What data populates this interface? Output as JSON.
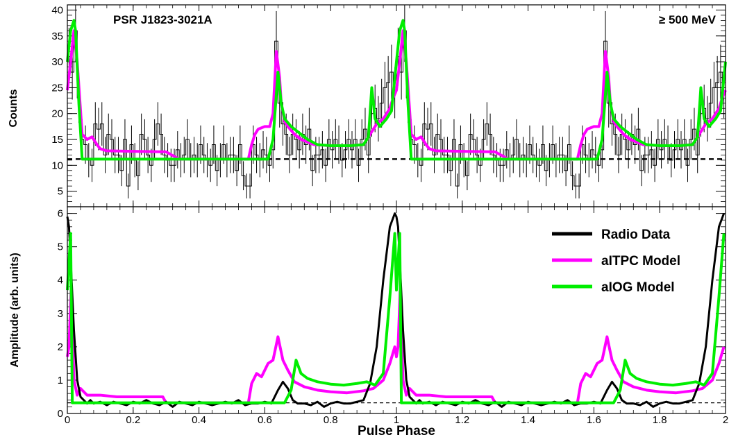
{
  "chart_data": {
    "type": "line",
    "xlabel": "Pulse Phase",
    "xlim": [
      0,
      2
    ],
    "x_ticks": [
      "0",
      "0.2",
      "0.4",
      "0.6",
      "0.8",
      "1",
      "1.2",
      "1.4",
      "1.6",
      "1.8",
      "2"
    ],
    "colors": {
      "data": "#000000",
      "altpc": "#ff00ff",
      "alog": "#00ee00",
      "baseline": "#000000"
    },
    "top_panel": {
      "title": "PSR J1823-3021A",
      "energy_label": "≥ 500 MeV",
      "ylabel": "Counts",
      "ylim": [
        2,
        41
      ],
      "y_ticks": [
        "5",
        "10",
        "15",
        "20",
        "25",
        "30",
        "35",
        "40"
      ],
      "baseline": 11.2,
      "histogram_one_cycle": [
        {
          "x": 0.005,
          "y": 31,
          "err": 5.6
        },
        {
          "x": 0.015,
          "y": 28,
          "err": 5.3
        },
        {
          "x": 0.025,
          "y": 36,
          "err": 6.0
        },
        {
          "x": 0.035,
          "y": 23,
          "err": 4.8
        },
        {
          "x": 0.045,
          "y": 15,
          "err": 3.9
        },
        {
          "x": 0.055,
          "y": 14,
          "err": 3.7
        },
        {
          "x": 0.065,
          "y": 11,
          "err": 3.3
        },
        {
          "x": 0.075,
          "y": 10,
          "err": 3.2
        },
        {
          "x": 0.085,
          "y": 18,
          "err": 4.2
        },
        {
          "x": 0.095,
          "y": 17,
          "err": 4.1
        },
        {
          "x": 0.105,
          "y": 18,
          "err": 4.2
        },
        {
          "x": 0.115,
          "y": 12,
          "err": 3.5
        },
        {
          "x": 0.125,
          "y": 16,
          "err": 4.0
        },
        {
          "x": 0.135,
          "y": 15,
          "err": 3.9
        },
        {
          "x": 0.145,
          "y": 12,
          "err": 3.5
        },
        {
          "x": 0.155,
          "y": 12,
          "err": 3.5
        },
        {
          "x": 0.165,
          "y": 9,
          "err": 3.0
        },
        {
          "x": 0.175,
          "y": 15,
          "err": 3.9
        },
        {
          "x": 0.185,
          "y": 6,
          "err": 2.4
        },
        {
          "x": 0.195,
          "y": 14,
          "err": 3.7
        },
        {
          "x": 0.205,
          "y": 11,
          "err": 3.3
        },
        {
          "x": 0.215,
          "y": 8,
          "err": 2.8
        },
        {
          "x": 0.225,
          "y": 16,
          "err": 4.0
        },
        {
          "x": 0.235,
          "y": 15,
          "err": 3.9
        },
        {
          "x": 0.245,
          "y": 12,
          "err": 3.5
        },
        {
          "x": 0.255,
          "y": 10,
          "err": 3.2
        },
        {
          "x": 0.265,
          "y": 15,
          "err": 3.9
        },
        {
          "x": 0.275,
          "y": 18,
          "err": 4.2
        },
        {
          "x": 0.285,
          "y": 16,
          "err": 4.0
        },
        {
          "x": 0.295,
          "y": 12,
          "err": 3.5
        },
        {
          "x": 0.305,
          "y": 11,
          "err": 3.3
        },
        {
          "x": 0.315,
          "y": 10,
          "err": 3.2
        },
        {
          "x": 0.325,
          "y": 10,
          "err": 3.2
        },
        {
          "x": 0.335,
          "y": 13,
          "err": 3.6
        },
        {
          "x": 0.345,
          "y": 11,
          "err": 3.3
        },
        {
          "x": 0.355,
          "y": 12,
          "err": 3.5
        },
        {
          "x": 0.365,
          "y": 15,
          "err": 3.9
        },
        {
          "x": 0.375,
          "y": 11,
          "err": 3.3
        },
        {
          "x": 0.385,
          "y": 12,
          "err": 3.5
        },
        {
          "x": 0.395,
          "y": 11,
          "err": 3.3
        },
        {
          "x": 0.405,
          "y": 14,
          "err": 3.7
        },
        {
          "x": 0.415,
          "y": 12,
          "err": 3.5
        },
        {
          "x": 0.425,
          "y": 11,
          "err": 3.3
        },
        {
          "x": 0.435,
          "y": 10,
          "err": 3.2
        },
        {
          "x": 0.445,
          "y": 14,
          "err": 3.7
        },
        {
          "x": 0.455,
          "y": 9,
          "err": 3.0
        },
        {
          "x": 0.465,
          "y": 11,
          "err": 3.3
        },
        {
          "x": 0.475,
          "y": 14,
          "err": 3.7
        },
        {
          "x": 0.485,
          "y": 11,
          "err": 3.3
        },
        {
          "x": 0.495,
          "y": 12,
          "err": 3.5
        },
        {
          "x": 0.505,
          "y": 12,
          "err": 3.5
        },
        {
          "x": 0.515,
          "y": 9,
          "err": 3.0
        },
        {
          "x": 0.525,
          "y": 14,
          "err": 3.7
        },
        {
          "x": 0.535,
          "y": 8,
          "err": 2.8
        },
        {
          "x": 0.545,
          "y": 6,
          "err": 2.4
        },
        {
          "x": 0.555,
          "y": 6,
          "err": 2.4
        },
        {
          "x": 0.565,
          "y": 14,
          "err": 3.7
        },
        {
          "x": 0.575,
          "y": 12,
          "err": 3.5
        },
        {
          "x": 0.585,
          "y": 11,
          "err": 3.3
        },
        {
          "x": 0.595,
          "y": 13,
          "err": 3.6
        },
        {
          "x": 0.605,
          "y": 12,
          "err": 3.5
        },
        {
          "x": 0.615,
          "y": 10,
          "err": 3.2
        },
        {
          "x": 0.625,
          "y": 13,
          "err": 3.6
        },
        {
          "x": 0.635,
          "y": 34,
          "err": 5.8
        },
        {
          "x": 0.645,
          "y": 22,
          "err": 4.7
        },
        {
          "x": 0.655,
          "y": 18,
          "err": 4.2
        },
        {
          "x": 0.665,
          "y": 16,
          "err": 4.0
        },
        {
          "x": 0.675,
          "y": 12,
          "err": 3.5
        },
        {
          "x": 0.685,
          "y": 16,
          "err": 4.0
        },
        {
          "x": 0.695,
          "y": 15,
          "err": 3.9
        },
        {
          "x": 0.705,
          "y": 13,
          "err": 3.6
        },
        {
          "x": 0.715,
          "y": 16,
          "err": 4.0
        },
        {
          "x": 0.725,
          "y": 14,
          "err": 3.7
        },
        {
          "x": 0.735,
          "y": 17,
          "err": 4.1
        },
        {
          "x": 0.745,
          "y": 9,
          "err": 3.0
        },
        {
          "x": 0.755,
          "y": 12,
          "err": 3.5
        },
        {
          "x": 0.765,
          "y": 12,
          "err": 3.5
        },
        {
          "x": 0.775,
          "y": 13,
          "err": 3.6
        },
        {
          "x": 0.785,
          "y": 10,
          "err": 3.2
        },
        {
          "x": 0.795,
          "y": 15,
          "err": 3.9
        },
        {
          "x": 0.805,
          "y": 13,
          "err": 3.6
        },
        {
          "x": 0.815,
          "y": 15,
          "err": 3.9
        },
        {
          "x": 0.825,
          "y": 14,
          "err": 3.7
        },
        {
          "x": 0.835,
          "y": 11,
          "err": 3.3
        },
        {
          "x": 0.845,
          "y": 13,
          "err": 3.6
        },
        {
          "x": 0.855,
          "y": 15,
          "err": 3.9
        },
        {
          "x": 0.865,
          "y": 13,
          "err": 3.6
        },
        {
          "x": 0.875,
          "y": 15,
          "err": 3.9
        },
        {
          "x": 0.885,
          "y": 10,
          "err": 3.2
        },
        {
          "x": 0.895,
          "y": 15,
          "err": 3.9
        },
        {
          "x": 0.905,
          "y": 17,
          "err": 4.1
        },
        {
          "x": 0.915,
          "y": 12,
          "err": 3.5
        },
        {
          "x": 0.925,
          "y": 20,
          "err": 4.5
        },
        {
          "x": 0.935,
          "y": 21,
          "err": 4.6
        },
        {
          "x": 0.945,
          "y": 19,
          "err": 4.4
        },
        {
          "x": 0.955,
          "y": 22,
          "err": 4.7
        },
        {
          "x": 0.965,
          "y": 25,
          "err": 5.0
        },
        {
          "x": 0.975,
          "y": 26,
          "err": 5.1
        },
        {
          "x": 0.985,
          "y": 28,
          "err": 5.3
        },
        {
          "x": 0.995,
          "y": 24,
          "err": 4.9
        }
      ],
      "models_one_cycle": [
        {
          "name": "altpc",
          "x": [
            0,
            0.01,
            0.02,
            0.03,
            0.045,
            0.06,
            0.075,
            0.09,
            0.1,
            0.12,
            0.2,
            0.3,
            0.34,
            0.55,
            0.56,
            0.57,
            0.58,
            0.6,
            0.615,
            0.625,
            0.635,
            0.645,
            0.65,
            0.66,
            0.67,
            0.69,
            0.71,
            0.73,
            0.75,
            0.8,
            0.85,
            0.9,
            0.92,
            0.94,
            0.96,
            0.98,
            0.99,
            1.0
          ],
          "y": [
            24.5,
            30,
            36,
            30,
            16,
            15,
            15.5,
            14,
            13.2,
            12.8,
            12.7,
            12.6,
            11.2,
            11.2,
            14,
            16,
            17,
            17.5,
            17.5,
            20,
            32,
            27,
            22,
            18.5,
            17.5,
            16,
            15,
            14.5,
            14,
            13.8,
            13.8,
            14,
            16,
            18,
            19,
            21,
            23,
            24.5
          ]
        },
        {
          "name": "alog",
          "x": [
            0,
            0.01,
            0.02,
            0.025,
            0.035,
            0.045,
            0.6,
            0.61,
            0.625,
            0.64,
            0.65,
            0.66,
            0.68,
            0.7,
            0.73,
            0.76,
            0.8,
            0.86,
            0.9,
            0.915,
            0.925,
            0.935,
            0.95,
            0.97,
            0.985,
            1.0
          ],
          "y": [
            30,
            36,
            38,
            36,
            22,
            11.2,
            11.2,
            11.2,
            15,
            28,
            22,
            19,
            17.5,
            16.5,
            15,
            14,
            13.8,
            13.8,
            14,
            15.5,
            25,
            19,
            17.5,
            19,
            20.5,
            30
          ]
        }
      ]
    },
    "bottom_panel": {
      "ylabel": "Amplitude (arb. units)",
      "ylim": [
        0,
        6.2
      ],
      "y_ticks": [
        "0",
        "1",
        "2",
        "3",
        "4",
        "5",
        "6"
      ],
      "baseline": 0.32,
      "legend_position": "top-right",
      "series": [
        {
          "name": "Radio Data",
          "x": [
            0,
            0.005,
            0.012,
            0.02,
            0.03,
            0.04,
            0.05,
            0.06,
            0.07,
            0.08,
            0.1,
            0.12,
            0.14,
            0.16,
            0.18,
            0.2,
            0.22,
            0.24,
            0.26,
            0.28,
            0.3,
            0.32,
            0.34,
            0.36,
            0.38,
            0.4,
            0.42,
            0.44,
            0.46,
            0.48,
            0.5,
            0.52,
            0.54,
            0.56,
            0.58,
            0.6,
            0.62,
            0.64,
            0.655,
            0.67,
            0.685,
            0.7,
            0.72,
            0.74,
            0.76,
            0.78,
            0.8,
            0.82,
            0.84,
            0.86,
            0.88,
            0.9,
            0.92,
            0.94,
            0.96,
            0.98,
            0.995
          ],
          "y": [
            5.9,
            5.6,
            4.2,
            2.5,
            1.0,
            0.5,
            0.4,
            0.3,
            0.4,
            0.3,
            0.35,
            0.25,
            0.35,
            0.3,
            0.25,
            0.35,
            0.3,
            0.4,
            0.3,
            0.25,
            0.35,
            0.2,
            0.35,
            0.3,
            0.25,
            0.35,
            0.3,
            0.25,
            0.3,
            0.35,
            0.3,
            0.4,
            0.25,
            0.3,
            0.3,
            0.35,
            0.3,
            0.7,
            0.95,
            0.75,
            0.4,
            0.3,
            0.3,
            0.25,
            0.35,
            0.2,
            0.3,
            0.35,
            0.3,
            0.3,
            0.35,
            0.4,
            0.9,
            2.0,
            4.0,
            5.6,
            6.0
          ]
        },
        {
          "name": "aITPC Model",
          "x": [
            0,
            0.005,
            0.012,
            0.02,
            0.03,
            0.04,
            0.05,
            0.06,
            0.07,
            0.08,
            0.1,
            0.15,
            0.2,
            0.25,
            0.29,
            0.3,
            0.55,
            0.56,
            0.575,
            0.59,
            0.61,
            0.625,
            0.64,
            0.655,
            0.67,
            0.69,
            0.72,
            0.76,
            0.8,
            0.85,
            0.9,
            0.93,
            0.96,
            0.98,
            0.995
          ],
          "y": [
            1.7,
            2.0,
            3.9,
            1.0,
            0.55,
            0.75,
            0.65,
            0.55,
            0.55,
            0.55,
            0.55,
            0.5,
            0.5,
            0.5,
            0.5,
            0.32,
            0.32,
            0.9,
            1.2,
            1.1,
            1.5,
            1.6,
            2.3,
            1.6,
            1.3,
            0.95,
            0.8,
            0.7,
            0.65,
            0.62,
            0.68,
            0.75,
            1.0,
            1.5,
            2.0
          ]
        },
        {
          "name": "aIOG Model",
          "x": [
            0,
            0.01,
            0.015,
            0.66,
            0.68,
            0.695,
            0.71,
            0.73,
            0.76,
            0.8,
            0.84,
            0.88,
            0.91,
            0.935,
            0.96,
            0.98,
            0.995
          ],
          "y": [
            3.7,
            5.4,
            0.32,
            0.32,
            0.7,
            1.6,
            1.2,
            1.05,
            0.95,
            0.88,
            0.85,
            0.9,
            0.95,
            0.85,
            1.2,
            3.5,
            5.4
          ]
        }
      ]
    }
  }
}
